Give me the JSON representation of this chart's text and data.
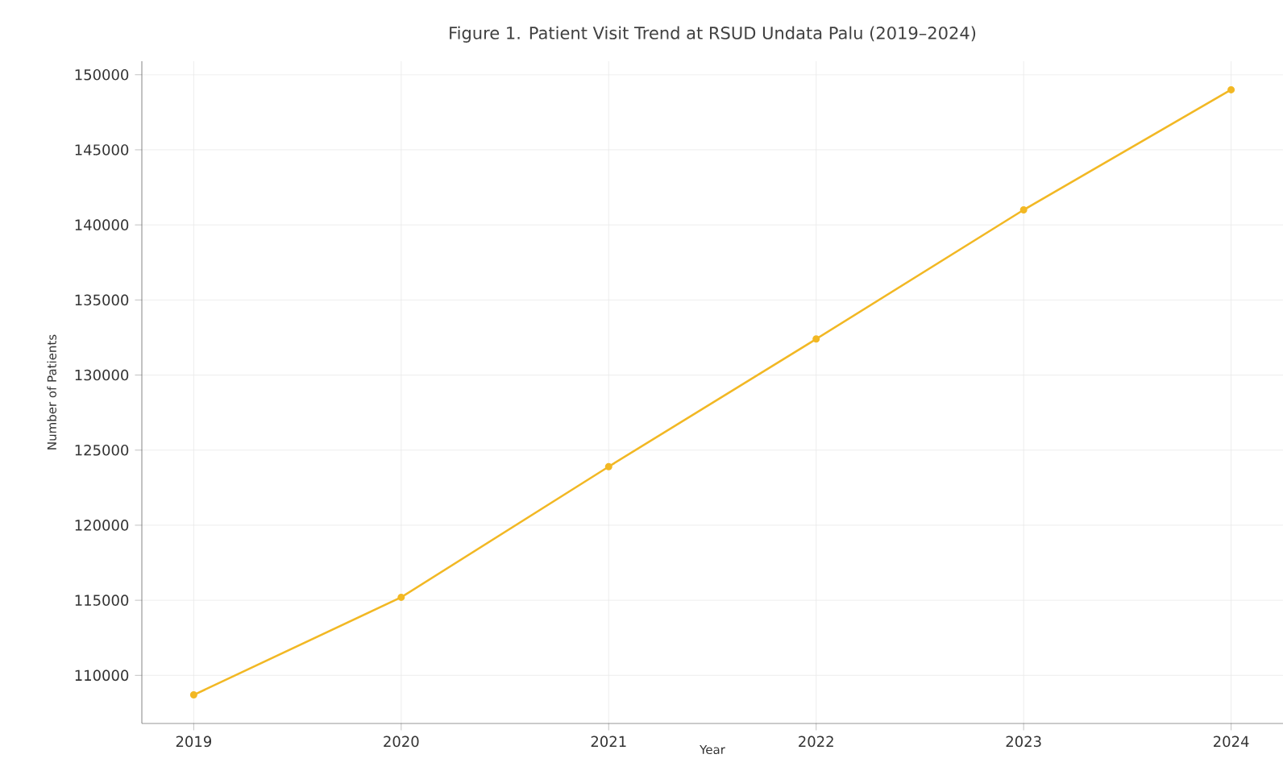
{
  "chart_data": {
    "type": "line",
    "title": "Figure 1. Patient Visit Trend at RSUD Undata Palu (2019–2024)",
    "xlabel": "Year",
    "ylabel": "Number of Patients",
    "x": [
      2019,
      2020,
      2021,
      2022,
      2023,
      2024
    ],
    "series": [
      {
        "color": "#f2b824",
        "values": [
          108700,
          115200,
          123900,
          132400,
          141000,
          149000
        ]
      }
    ],
    "xlim": [
      2018.75,
      2024.25
    ],
    "xticks": [
      2019,
      2020,
      2021,
      2022,
      2023,
      2024
    ],
    "ylim": [
      106800,
      150900
    ],
    "yticks": [
      110000,
      115000,
      120000,
      125000,
      130000,
      135000,
      140000,
      145000,
      150000
    ],
    "grid": true,
    "marker": "circle",
    "line_style": "solid"
  }
}
